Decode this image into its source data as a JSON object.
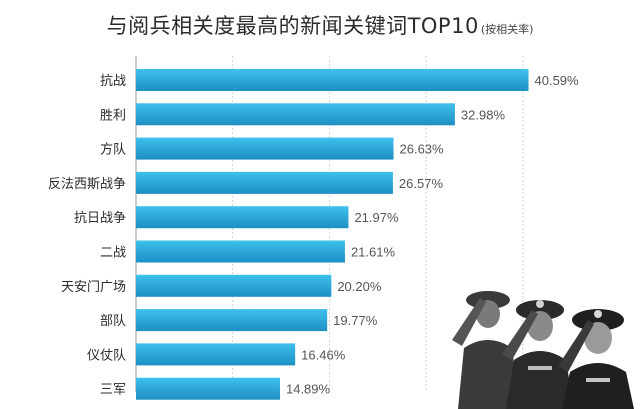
{
  "title": "与阅兵相关度最高的新闻关键词TOP10",
  "subtitle": "(按相关率)",
  "colors": {
    "bar_top": "#3fc0ec",
    "bar_bottom": "#1d8fc3",
    "gridline": "#c8d6dc",
    "axis": "#9a9a9a"
  },
  "chart_data": {
    "type": "bar",
    "orientation": "horizontal",
    "title": "与阅兵相关度最高的新闻关键词TOP10",
    "subtitle": "(按相关率)",
    "categories": [
      "抗战",
      "胜利",
      "方队",
      "反法西斯战争",
      "抗日战争",
      "二战",
      "天安门广场",
      "部队",
      "仪仗队",
      "三军"
    ],
    "values": [
      40.59,
      32.98,
      26.63,
      26.57,
      21.97,
      21.61,
      20.2,
      19.77,
      16.46,
      14.89
    ],
    "value_labels": [
      "40.59%",
      "32.98%",
      "26.63%",
      "26.57%",
      "21.97%",
      "21.61%",
      "20.20%",
      "19.77%",
      "16.46%",
      "14.89%"
    ],
    "xlim": [
      0,
      45
    ],
    "grid": true,
    "legend": "none"
  }
}
